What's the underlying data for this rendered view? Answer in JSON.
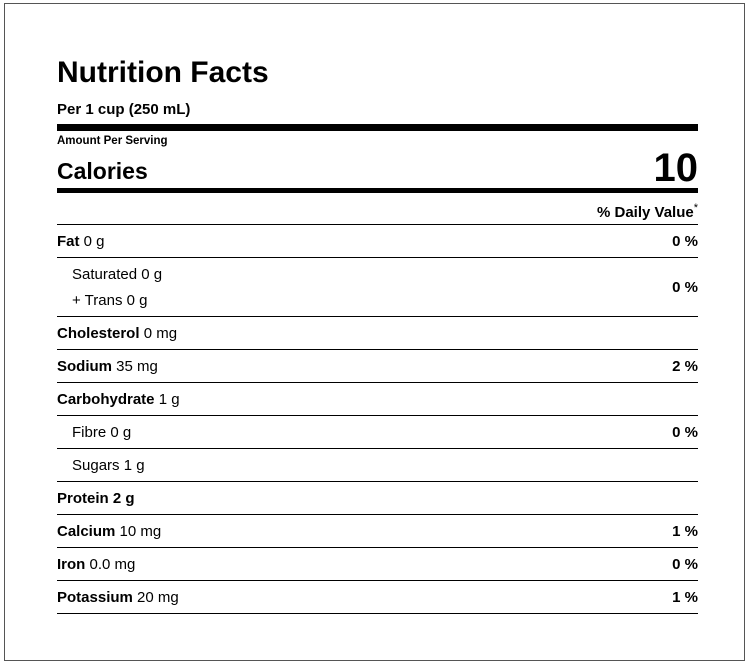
{
  "label": {
    "title": "Nutrition Facts",
    "serving": "Per 1 cup (250 mL)",
    "amount_per_serving": "Amount Per Serving",
    "calories_label": "Calories",
    "calories_value": "10",
    "daily_value_header": "% Daily Value",
    "daily_value_mark": "*"
  },
  "nutrients": {
    "fat": {
      "name": "Fat",
      "amount": "0 g",
      "pct": "0 %"
    },
    "saturated": {
      "name": "Saturated",
      "amount": "0 g"
    },
    "trans": {
      "name": "+ Trans",
      "amount": "0 g"
    },
    "fat_sub_pct": "0 %",
    "cholesterol": {
      "name": "Cholesterol",
      "amount": "0 mg",
      "pct": ""
    },
    "sodium": {
      "name": "Sodium",
      "amount": "35 mg",
      "pct": "2 %"
    },
    "carbohydrate": {
      "name": "Carbohydrate",
      "amount": "1 g",
      "pct": ""
    },
    "fibre": {
      "name": "Fibre",
      "amount": "0 g",
      "pct": "0 %"
    },
    "sugars": {
      "name": "Sugars",
      "amount": "1 g",
      "pct": ""
    },
    "protein": {
      "name": "Protein",
      "amount": "2 g",
      "pct": ""
    },
    "calcium": {
      "name": "Calcium",
      "amount": "10 mg",
      "pct": "1 %"
    },
    "iron": {
      "name": "Iron",
      "amount": "0.0 mg",
      "pct": "0 %"
    },
    "potassium": {
      "name": "Potassium",
      "amount": "20 mg",
      "pct": "1 %"
    }
  }
}
